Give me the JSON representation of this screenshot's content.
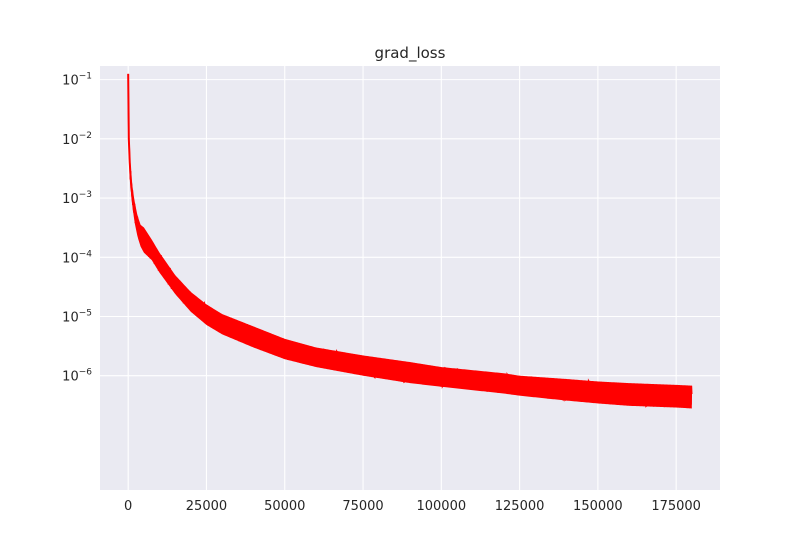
{
  "chart_data": {
    "type": "line",
    "title": "grad_loss",
    "xlabel": "",
    "ylabel": "",
    "xscale": "linear",
    "yscale": "log",
    "xlim": [
      -9000,
      189000
    ],
    "ylim_log10": [
      -7.93,
      -0.77
    ],
    "grid": true,
    "background": "#eaeaf2",
    "grid_color": "#ffffff",
    "x_ticks": [
      {
        "value": 0,
        "label": "0"
      },
      {
        "value": 25000,
        "label": "25000"
      },
      {
        "value": 50000,
        "label": "50000"
      },
      {
        "value": 75000,
        "label": "75000"
      },
      {
        "value": 100000,
        "label": "100000"
      },
      {
        "value": 125000,
        "label": "125000"
      },
      {
        "value": 150000,
        "label": "150000"
      },
      {
        "value": 175000,
        "label": "175000"
      }
    ],
    "y_ticks": [
      {
        "exp": -1,
        "base": "10",
        "sup": "−1"
      },
      {
        "exp": -2,
        "base": "10",
        "sup": "−2"
      },
      {
        "exp": -3,
        "base": "10",
        "sup": "−3"
      },
      {
        "exp": -4,
        "base": "10",
        "sup": "−4"
      },
      {
        "exp": -5,
        "base": "10",
        "sup": "−5"
      },
      {
        "exp": -6,
        "base": "10",
        "sup": "−6"
      }
    ],
    "series": [
      {
        "color": "#ff0000",
        "x": [
          0,
          200,
          500,
          1000,
          2000,
          3000,
          4000,
          5000,
          7500,
          10000,
          15000,
          20000,
          25000,
          30000,
          40000,
          50000,
          60000,
          75000,
          90000,
          100000,
          120000,
          125000,
          140000,
          150000,
          160000,
          175000,
          180000
        ],
        "y": [
          0.125,
          0.01,
          0.004,
          0.0015,
          0.0006,
          0.00035,
          0.00022,
          0.00017,
          0.00013,
          8e-05,
          3.5e-05,
          1.8e-05,
          1.1e-05,
          7.5e-06,
          4.5e-06,
          2.8e-06,
          2.1e-06,
          1.5e-06,
          1.1e-06,
          9.5e-07,
          7.5e-07,
          7e-07,
          5.8e-07,
          5.2e-07,
          4.8e-07,
          4.5e-07,
          4.4e-07
        ],
        "noise_band_upper": [
          0.125,
          0.012,
          0.005,
          0.0022,
          0.0009,
          0.0005,
          0.00035,
          0.00032,
          0.0002,
          0.00012,
          5e-05,
          2.6e-05,
          1.6e-05,
          1.1e-05,
          6.8e-06,
          4.2e-06,
          3e-06,
          2.2e-06,
          1.7e-06,
          1.4e-06,
          1.1e-06,
          1e-06,
          8.8e-07,
          8e-07,
          7.5e-07,
          7e-07,
          6.8e-07
        ],
        "noise_band_lower": [
          0.125,
          0.006,
          0.0025,
          0.001,
          0.0004,
          0.00022,
          0.00015,
          0.00012,
          9e-05,
          5.5e-05,
          2.4e-05,
          1.2e-05,
          7.2e-06,
          5e-06,
          3e-06,
          1.9e-06,
          1.4e-06,
          1e-06,
          7.5e-07,
          6.5e-07,
          5e-07,
          4.6e-07,
          3.8e-07,
          3.4e-07,
          3.1e-07,
          2.9e-07,
          2.8e-07
        ]
      }
    ]
  }
}
